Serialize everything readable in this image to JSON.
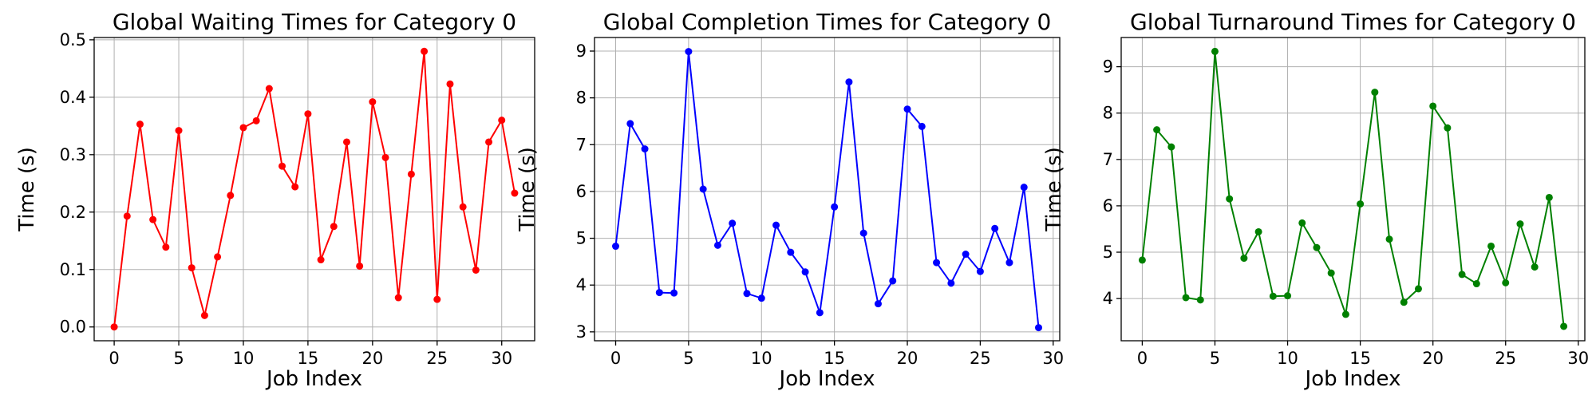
{
  "chart_data": [
    {
      "type": "line",
      "title": "Global Waiting Times for Category 0",
      "xlabel": "Job Index",
      "ylabel": "Time (s)",
      "xlim": [
        -1.55,
        32.55
      ],
      "ylim": [
        -0.024,
        0.504
      ],
      "xticks": [
        0,
        5,
        10,
        15,
        20,
        25,
        30
      ],
      "xtick_labels": [
        "0",
        "5",
        "10",
        "15",
        "20",
        "25",
        "30"
      ],
      "yticks": [
        0.0,
        0.1,
        0.2,
        0.3,
        0.4,
        0.5
      ],
      "ytick_labels": [
        "0.0",
        "0.1",
        "0.2",
        "0.3",
        "0.4",
        "0.5"
      ],
      "grid": true,
      "color": "#ff0000",
      "marker": "circle",
      "x": [
        0,
        1,
        2,
        3,
        4,
        5,
        6,
        7,
        8,
        9,
        10,
        11,
        12,
        13,
        14,
        15,
        16,
        17,
        18,
        19,
        20,
        21,
        22,
        23,
        24,
        25,
        26,
        27,
        28,
        29,
        30,
        31
      ],
      "y": [
        0.0,
        0.193,
        0.353,
        0.187,
        0.139,
        0.342,
        0.103,
        0.02,
        0.122,
        0.229,
        0.347,
        0.359,
        0.415,
        0.28,
        0.244,
        0.371,
        0.117,
        0.175,
        0.322,
        0.106,
        0.392,
        0.295,
        0.051,
        0.266,
        0.48,
        0.048,
        0.423,
        0.209,
        0.099,
        0.322,
        0.36,
        0.233
      ]
    },
    {
      "type": "line",
      "title": "Global Completion Times for Category 0",
      "xlabel": "Job Index",
      "ylabel": "Time (s)",
      "xlim": [
        -1.45,
        30.45
      ],
      "ylim": [
        2.81,
        9.29
      ],
      "xticks": [
        0,
        5,
        10,
        15,
        20,
        25,
        30
      ],
      "xtick_labels": [
        "0",
        "5",
        "10",
        "15",
        "20",
        "25",
        "30"
      ],
      "yticks": [
        3,
        4,
        5,
        6,
        7,
        8,
        9
      ],
      "ytick_labels": [
        "3",
        "4",
        "5",
        "6",
        "7",
        "8",
        "9"
      ],
      "grid": true,
      "color": "#0000ff",
      "marker": "circle",
      "x": [
        0,
        1,
        2,
        3,
        4,
        5,
        6,
        7,
        8,
        9,
        10,
        11,
        12,
        13,
        14,
        15,
        16,
        17,
        18,
        19,
        20,
        21,
        22,
        23,
        24,
        25,
        26,
        27,
        28,
        29
      ],
      "y": [
        4.83,
        7.45,
        6.91,
        3.84,
        3.83,
        8.99,
        6.05,
        4.85,
        5.32,
        3.82,
        3.72,
        5.28,
        4.7,
        4.28,
        3.41,
        5.67,
        8.34,
        5.11,
        3.6,
        4.09,
        7.76,
        7.39,
        4.48,
        4.04,
        4.66,
        4.29,
        5.21,
        4.48,
        6.09,
        3.09
      ]
    },
    {
      "type": "line",
      "title": "Global Turnaround Times for Category 0",
      "xlabel": "Job Index",
      "ylabel": "Time (s)",
      "xlim": [
        -1.45,
        30.45
      ],
      "ylim": [
        3.09,
        9.63
      ],
      "xticks": [
        0,
        5,
        10,
        15,
        20,
        25,
        30
      ],
      "xtick_labels": [
        "0",
        "5",
        "10",
        "15",
        "20",
        "25",
        "30"
      ],
      "yticks": [
        4,
        5,
        6,
        7,
        8,
        9
      ],
      "ytick_labels": [
        "4",
        "5",
        "6",
        "7",
        "8",
        "9"
      ],
      "grid": true,
      "color": "#008000",
      "marker": "circle",
      "x": [
        0,
        1,
        2,
        3,
        4,
        5,
        6,
        7,
        8,
        9,
        10,
        11,
        12,
        13,
        14,
        15,
        16,
        17,
        18,
        19,
        20,
        21,
        22,
        23,
        24,
        25,
        26,
        27,
        28,
        29
      ],
      "y": [
        4.83,
        7.64,
        7.27,
        4.02,
        3.97,
        9.33,
        6.15,
        4.87,
        5.44,
        4.05,
        4.06,
        5.63,
        5.1,
        4.55,
        3.66,
        6.04,
        8.45,
        5.28,
        3.92,
        4.21,
        8.15,
        7.68,
        4.52,
        4.32,
        5.13,
        4.34,
        5.61,
        4.68,
        6.18,
        3.4
      ]
    }
  ]
}
